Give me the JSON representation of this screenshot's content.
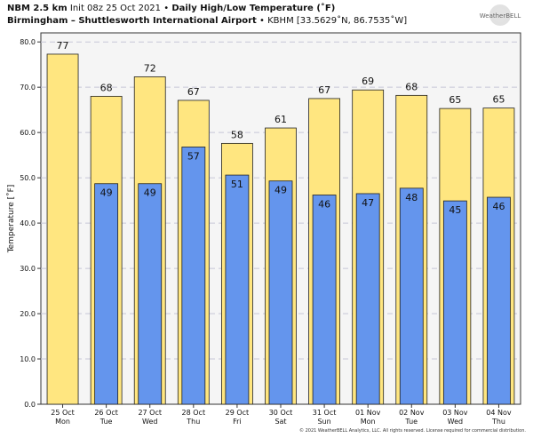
{
  "header": {
    "model": "NBM 2.5 km",
    "init": "Init 08z 25 Oct 2021",
    "bullet": "•",
    "title": "Daily High/Low Temperature (˚F)",
    "station_name": "Birmingham – Shuttlesworth International Airport",
    "station_info": "KBHM [33.5629˚N, 86.7535˚W]"
  },
  "logo": {
    "text": "WeatherBELL"
  },
  "footer": {
    "copyright": "© 2021 WeatherBELL Analytics, LLC. All rights reserved. License required for commercial distribution."
  },
  "colors": {
    "high": "#ffe680",
    "low": "#6495ed",
    "background": "#f5f5f5",
    "grid": "#c8c8d8"
  },
  "chart_data": {
    "type": "bar",
    "ylabel": "Temperature [˚F]",
    "ylim": [
      0,
      82
    ],
    "yticks": [
      0,
      10,
      20,
      30,
      40,
      50,
      60,
      70,
      80
    ],
    "ytick_labels": [
      "0.0",
      "10.0",
      "20.0",
      "30.0",
      "40.0",
      "50.0",
      "60.0",
      "70.0",
      "80.0"
    ],
    "grid": "horizontal dashed",
    "categories": [
      [
        "25 Oct",
        "Mon"
      ],
      [
        "26 Oct",
        "Tue"
      ],
      [
        "27 Oct",
        "Wed"
      ],
      [
        "28 Oct",
        "Thu"
      ],
      [
        "29 Oct",
        "Fri"
      ],
      [
        "30 Oct",
        "Sat"
      ],
      [
        "31 Oct",
        "Sun"
      ],
      [
        "01 Nov",
        "Mon"
      ],
      [
        "02 Nov",
        "Tue"
      ],
      [
        "03 Nov",
        "Wed"
      ],
      [
        "04 Nov",
        "Thu"
      ]
    ],
    "series": [
      {
        "values": [
          77.3,
          68.0,
          72.3,
          67.1,
          57.6,
          61.0,
          67.5,
          69.4,
          68.2,
          65.3,
          65.4
        ],
        "labels": [
          "77",
          "68",
          "72",
          "67",
          "58",
          "61",
          "67",
          "69",
          "68",
          "65",
          "65"
        ]
      },
      {
        "values": [
          null,
          48.7,
          48.7,
          56.8,
          50.6,
          49.3,
          46.2,
          46.5,
          47.7,
          44.9,
          45.7
        ],
        "labels": [
          "",
          "49",
          "49",
          "57",
          "51",
          "49",
          "46",
          "47",
          "48",
          "45",
          "46"
        ]
      }
    ]
  }
}
